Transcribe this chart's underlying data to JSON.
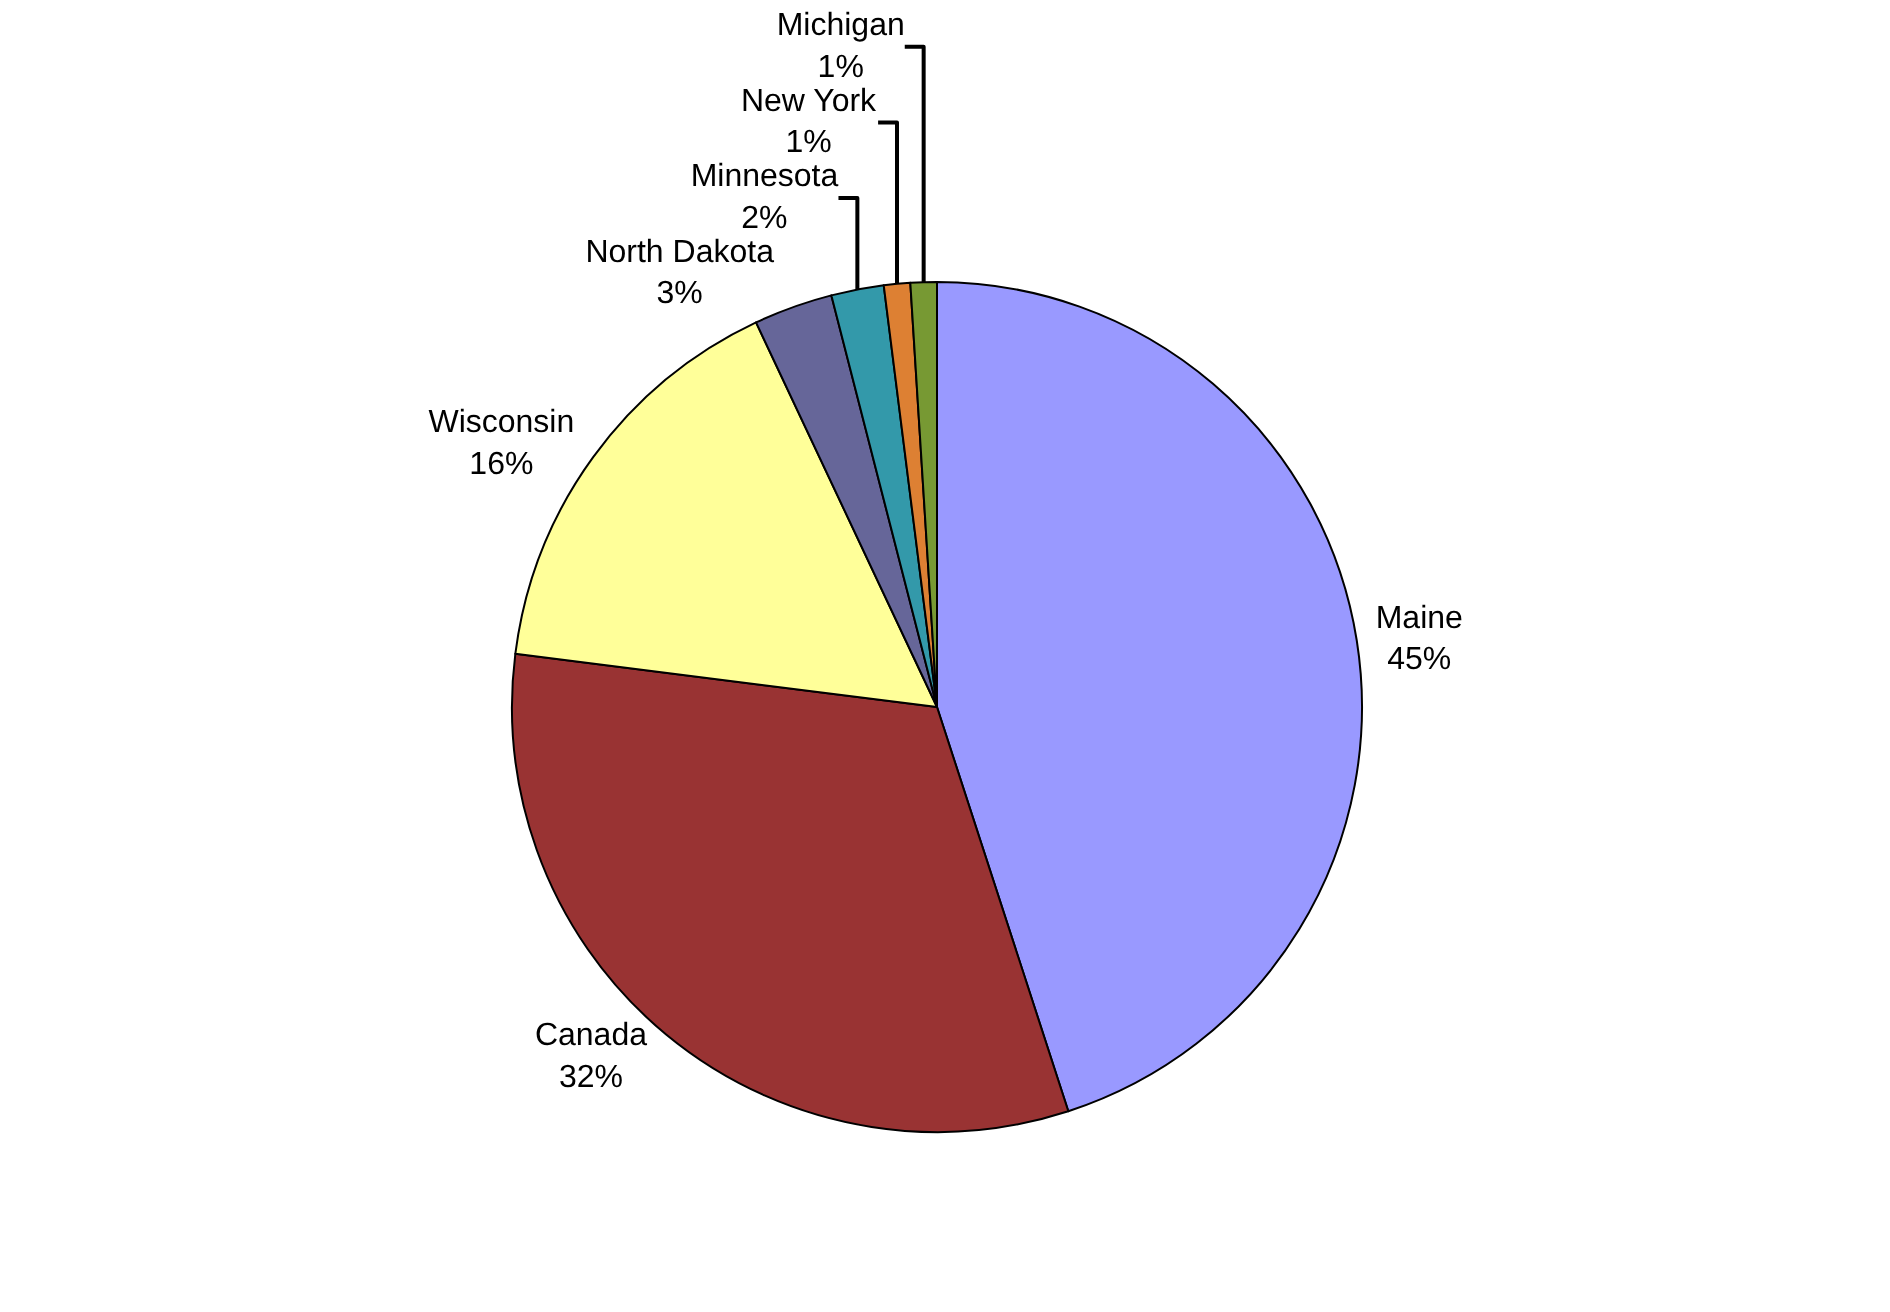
{
  "chart_data": {
    "type": "pie",
    "categories": [
      "Maine",
      "Canada",
      "Wisconsin",
      "North Dakota",
      "Minnesota",
      "New York",
      "Michigan"
    ],
    "values": [
      45,
      32,
      16,
      3,
      2,
      1,
      1
    ],
    "value_labels": [
      "45%",
      "32%",
      "16%",
      "3%",
      "2%",
      "1%",
      "1%"
    ],
    "colors": [
      "#9999ff",
      "#993333",
      "#ffff99",
      "#666699",
      "#3399aa",
      "#dd8033",
      "#779933"
    ],
    "legend": false
  }
}
